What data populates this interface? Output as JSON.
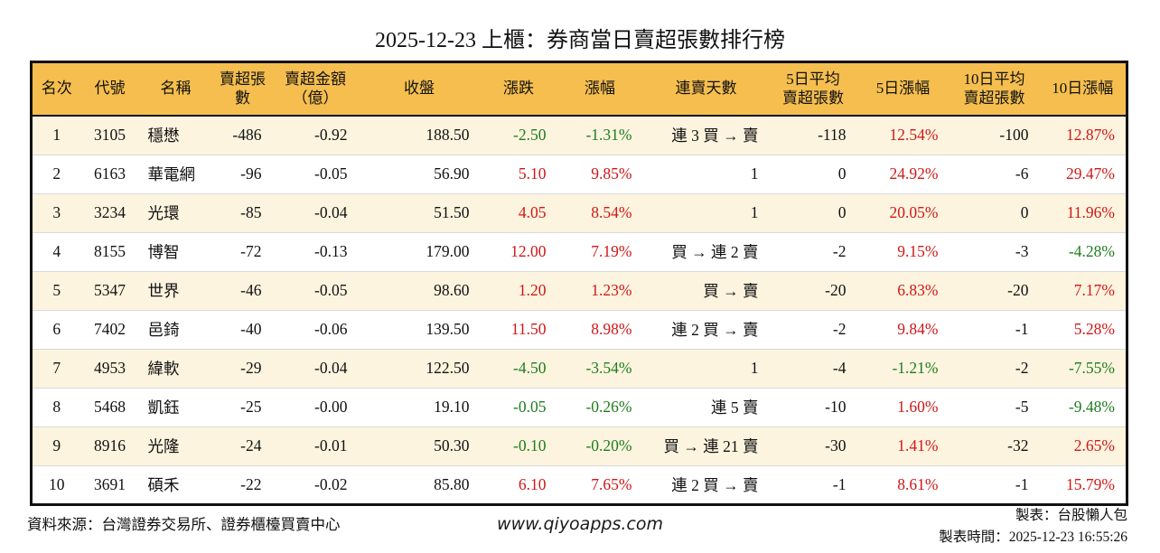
{
  "title": "2025-12-23 上櫃：券商當日賣超張數排行榜",
  "colors": {
    "header_bg": "#f5be4e",
    "row_alt": "#fcf4df",
    "up_red": "#d01717",
    "down_green": "#1e7d1e",
    "border": "#111111"
  },
  "table": {
    "headers": [
      "名次",
      "代號",
      "名稱",
      "賣超張數",
      "賣超金額\n（億）",
      "收盤",
      "漲跌",
      "漲幅",
      "連賣天數",
      "5日平均\n賣超張數",
      "5日漲幅",
      "10日平均\n賣超張數",
      "10日漲幅"
    ],
    "rows": [
      {
        "rank": "1",
        "code": "3105",
        "name": "穩懋",
        "net_sell": "-486",
        "amount": "-0.92",
        "close": "188.50",
        "change": "-2.50",
        "change_color": "green",
        "change_pct": "-1.31%",
        "change_pct_color": "green",
        "streak": "連 3 買 → 賣",
        "avg5": "-118",
        "pct5": "12.54%",
        "pct5_color": "red",
        "avg10": "-100",
        "pct10": "12.87%",
        "pct10_color": "red"
      },
      {
        "rank": "2",
        "code": "6163",
        "name": "華電網",
        "net_sell": "-96",
        "amount": "-0.05",
        "close": "56.90",
        "change": "5.10",
        "change_color": "red",
        "change_pct": "9.85%",
        "change_pct_color": "red",
        "streak": "1",
        "avg5": "0",
        "pct5": "24.92%",
        "pct5_color": "red",
        "avg10": "-6",
        "pct10": "29.47%",
        "pct10_color": "red"
      },
      {
        "rank": "3",
        "code": "3234",
        "name": "光環",
        "net_sell": "-85",
        "amount": "-0.04",
        "close": "51.50",
        "change": "4.05",
        "change_color": "red",
        "change_pct": "8.54%",
        "change_pct_color": "red",
        "streak": "1",
        "avg5": "0",
        "pct5": "20.05%",
        "pct5_color": "red",
        "avg10": "0",
        "pct10": "11.96%",
        "pct10_color": "red"
      },
      {
        "rank": "4",
        "code": "8155",
        "name": "博智",
        "net_sell": "-72",
        "amount": "-0.13",
        "close": "179.00",
        "change": "12.00",
        "change_color": "red",
        "change_pct": "7.19%",
        "change_pct_color": "red",
        "streak": "買 → 連 2 賣",
        "avg5": "-2",
        "pct5": "9.15%",
        "pct5_color": "red",
        "avg10": "-3",
        "pct10": "-4.28%",
        "pct10_color": "green"
      },
      {
        "rank": "5",
        "code": "5347",
        "name": "世界",
        "net_sell": "-46",
        "amount": "-0.05",
        "close": "98.60",
        "change": "1.20",
        "change_color": "red",
        "change_pct": "1.23%",
        "change_pct_color": "red",
        "streak": "買 → 賣",
        "avg5": "-20",
        "pct5": "6.83%",
        "pct5_color": "red",
        "avg10": "-20",
        "pct10": "7.17%",
        "pct10_color": "red"
      },
      {
        "rank": "6",
        "code": "7402",
        "name": "邑錡",
        "net_sell": "-40",
        "amount": "-0.06",
        "close": "139.50",
        "change": "11.50",
        "change_color": "red",
        "change_pct": "8.98%",
        "change_pct_color": "red",
        "streak": "連 2 買 → 賣",
        "avg5": "-2",
        "pct5": "9.84%",
        "pct5_color": "red",
        "avg10": "-1",
        "pct10": "5.28%",
        "pct10_color": "red"
      },
      {
        "rank": "7",
        "code": "4953",
        "name": "緯軟",
        "net_sell": "-29",
        "amount": "-0.04",
        "close": "122.50",
        "change": "-4.50",
        "change_color": "green",
        "change_pct": "-3.54%",
        "change_pct_color": "green",
        "streak": "1",
        "avg5": "-4",
        "pct5": "-1.21%",
        "pct5_color": "green",
        "avg10": "-2",
        "pct10": "-7.55%",
        "pct10_color": "green"
      },
      {
        "rank": "8",
        "code": "5468",
        "name": "凱鈺",
        "net_sell": "-25",
        "amount": "-0.00",
        "close": "19.10",
        "change": "-0.05",
        "change_color": "green",
        "change_pct": "-0.26%",
        "change_pct_color": "green",
        "streak": "連 5 賣",
        "avg5": "-10",
        "pct5": "1.60%",
        "pct5_color": "red",
        "avg10": "-5",
        "pct10": "-9.48%",
        "pct10_color": "green"
      },
      {
        "rank": "9",
        "code": "8916",
        "name": "光隆",
        "net_sell": "-24",
        "amount": "-0.01",
        "close": "50.30",
        "change": "-0.10",
        "change_color": "green",
        "change_pct": "-0.20%",
        "change_pct_color": "green",
        "streak": "買 → 連 21 賣",
        "avg5": "-30",
        "pct5": "1.41%",
        "pct5_color": "red",
        "avg10": "-32",
        "pct10": "2.65%",
        "pct10_color": "red"
      },
      {
        "rank": "10",
        "code": "3691",
        "name": "碩禾",
        "net_sell": "-22",
        "amount": "-0.02",
        "close": "85.80",
        "change": "6.10",
        "change_color": "red",
        "change_pct": "7.65%",
        "change_pct_color": "red",
        "streak": "連 2 買 → 賣",
        "avg5": "-1",
        "pct5": "8.61%",
        "pct5_color": "red",
        "avg10": "-1",
        "pct10": "15.79%",
        "pct10_color": "red"
      }
    ]
  },
  "footer": {
    "source": "資料來源：台灣證券交易所、證券櫃檯買賣中心",
    "website": "www.qiyoapps.com",
    "creator": "製表：台股懶人包",
    "generated_at": "製表時間：2025-12-23 16:55:26"
  },
  "chart_data": {
    "type": "table",
    "title": "2025-12-23 上櫃：券商當日賣超張數排行榜",
    "columns": [
      "名次",
      "代號",
      "名稱",
      "賣超張數",
      "賣超金額（億）",
      "收盤",
      "漲跌",
      "漲幅",
      "連賣天數",
      "5日平均賣超張數",
      "5日漲幅",
      "10日平均賣超張數",
      "10日漲幅"
    ],
    "rows": [
      [
        1,
        "3105",
        "穩懋",
        -486,
        -0.92,
        188.5,
        -2.5,
        "-1.31%",
        "連 3 買 → 賣",
        -118,
        "12.54%",
        -100,
        "12.87%"
      ],
      [
        2,
        "6163",
        "華電網",
        -96,
        -0.05,
        56.9,
        5.1,
        "9.85%",
        "1",
        0,
        "24.92%",
        -6,
        "29.47%"
      ],
      [
        3,
        "3234",
        "光環",
        -85,
        -0.04,
        51.5,
        4.05,
        "8.54%",
        "1",
        0,
        "20.05%",
        0,
        "11.96%"
      ],
      [
        4,
        "8155",
        "博智",
        -72,
        -0.13,
        179.0,
        12.0,
        "7.19%",
        "買 → 連 2 賣",
        -2,
        "9.15%",
        -3,
        "-4.28%"
      ],
      [
        5,
        "5347",
        "世界",
        -46,
        -0.05,
        98.6,
        1.2,
        "1.23%",
        "買 → 賣",
        -20,
        "6.83%",
        -20,
        "7.17%"
      ],
      [
        6,
        "7402",
        "邑錡",
        -40,
        -0.06,
        139.5,
        11.5,
        "8.98%",
        "連 2 買 → 賣",
        -2,
        "9.84%",
        -1,
        "5.28%"
      ],
      [
        7,
        "4953",
        "緯軟",
        -29,
        -0.04,
        122.5,
        -4.5,
        "-3.54%",
        "1",
        -4,
        "-1.21%",
        -2,
        "-7.55%"
      ],
      [
        8,
        "5468",
        "凱鈺",
        -25,
        -0.0,
        19.1,
        -0.05,
        "-0.26%",
        "連 5 賣",
        -10,
        "1.60%",
        -5,
        "-9.48%"
      ],
      [
        9,
        "8916",
        "光隆",
        -24,
        -0.01,
        50.3,
        -0.1,
        "-0.20%",
        "買 → 連 21 賣",
        -30,
        "1.41%",
        -32,
        "2.65%"
      ],
      [
        10,
        "3691",
        "碩禾",
        -22,
        -0.02,
        85.8,
        6.1,
        "7.65%",
        "連 2 買 → 賣",
        -1,
        "8.61%",
        -1,
        "15.79%"
      ]
    ]
  }
}
